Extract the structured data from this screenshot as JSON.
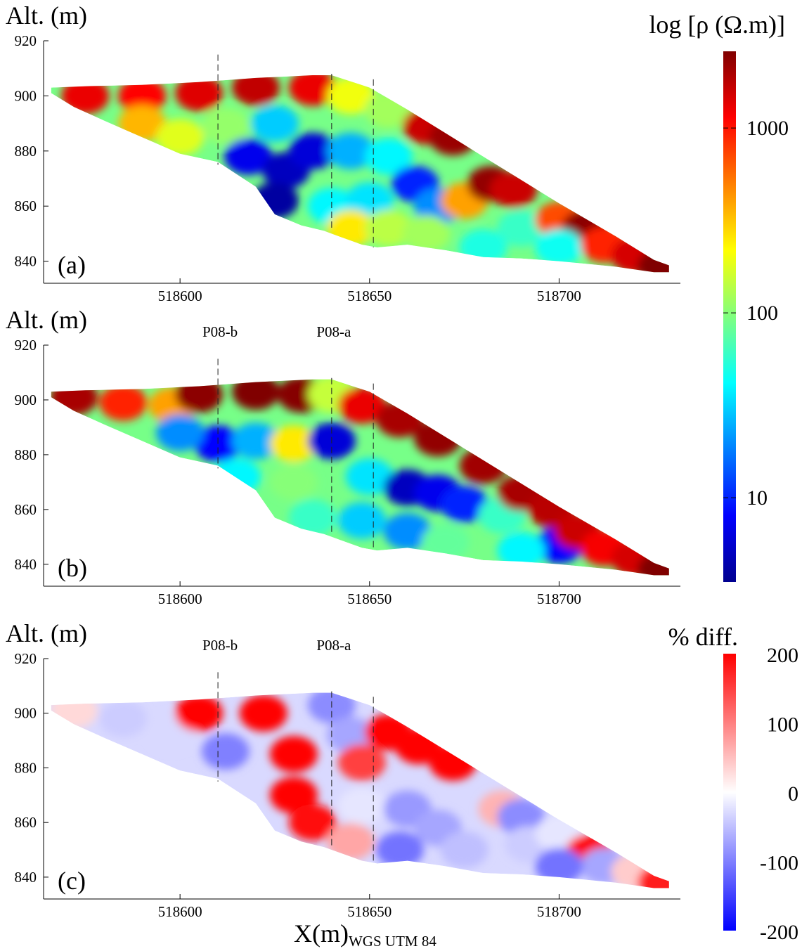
{
  "panels": [
    {
      "id": "a",
      "label": "(a)",
      "ylabel": "Alt. (m)",
      "profiles": []
    },
    {
      "id": "b",
      "label": "(b)",
      "ylabel": "Alt. (m)",
      "profiles": [
        {
          "name": "P08-b",
          "x": 518610
        },
        {
          "name": "P08-a",
          "x": 518640
        }
      ]
    },
    {
      "id": "c",
      "label": "(c)",
      "ylabel": "Alt. (m)",
      "profiles": [
        {
          "name": "P08-b",
          "x": 518610
        },
        {
          "name": "P08-a",
          "x": 518640
        }
      ]
    }
  ],
  "profile_lines_x": [
    518610,
    518640,
    518651
  ],
  "xlabel_main": "X(m)",
  "xlabel_sub": "WGS UTM 84",
  "colorbar_resistivity": {
    "title": "log [ρ (Ω.m)]",
    "ticks": [
      "10",
      "100",
      "1000"
    ],
    "colormap": "jet"
  },
  "colorbar_diff": {
    "title": "% diff.",
    "ticks": [
      "200",
      "100",
      "0",
      "-100",
      "-200"
    ],
    "colormap": "blue-white-red"
  },
  "chart_data": [
    {
      "type": "heatmap",
      "panel": "a",
      "title": "",
      "xlabel": "",
      "ylabel": "Alt. (m)",
      "xlim": [
        518564,
        518732
      ],
      "ylim": [
        832,
        920
      ],
      "xticks": [
        518600,
        518650,
        518700
      ],
      "yticks": [
        840,
        860,
        880,
        900,
        920
      ],
      "colorscale": "log",
      "clim": [
        3.5,
        2600
      ],
      "outline": [
        [
          518566,
          903
        ],
        [
          518575,
          903.5
        ],
        [
          518590,
          904
        ],
        [
          518605,
          905
        ],
        [
          518620,
          906.5
        ],
        [
          518635,
          907.5
        ],
        [
          518640,
          907.5
        ],
        [
          518650,
          903
        ],
        [
          518660,
          895
        ],
        [
          518680,
          878
        ],
        [
          518700,
          861
        ],
        [
          518715,
          849
        ],
        [
          518725,
          840.5
        ],
        [
          518729,
          838.5
        ],
        [
          518729,
          836
        ],
        [
          518725,
          836
        ],
        [
          518715,
          838
        ],
        [
          518700,
          840
        ],
        [
          518690,
          841
        ],
        [
          518680,
          841.5
        ],
        [
          518670,
          844
        ],
        [
          518660,
          846
        ],
        [
          518652,
          845
        ],
        [
          518648,
          846
        ],
        [
          518642,
          849
        ],
        [
          518638,
          851
        ],
        [
          518632,
          853
        ],
        [
          518625,
          857
        ],
        [
          518620,
          867
        ],
        [
          518610,
          876
        ],
        [
          518600,
          879
        ],
        [
          518590,
          885
        ],
        [
          518580,
          891
        ],
        [
          518572,
          896
        ],
        [
          518566,
          901
        ]
      ],
      "cells": [
        {
          "x": 518575,
          "y": 900,
          "rho": 1300
        },
        {
          "x": 518590,
          "y": 900,
          "rho": 1100
        },
        {
          "x": 518605,
          "y": 901,
          "rho": 1400
        },
        {
          "x": 518620,
          "y": 903,
          "rho": 1700
        },
        {
          "x": 518635,
          "y": 903,
          "rho": 1300
        },
        {
          "x": 518645,
          "y": 900,
          "rho": 200
        },
        {
          "x": 518655,
          "y": 895,
          "rho": 120
        },
        {
          "x": 518665,
          "y": 889,
          "rho": 1600
        },
        {
          "x": 518672,
          "y": 885,
          "rho": 2200
        },
        {
          "x": 518590,
          "y": 890,
          "rho": 350
        },
        {
          "x": 518600,
          "y": 885,
          "rho": 180
        },
        {
          "x": 518612,
          "y": 889,
          "rho": 110
        },
        {
          "x": 518625,
          "y": 890,
          "rho": 30
        },
        {
          "x": 518618,
          "y": 878,
          "rho": 7
        },
        {
          "x": 518628,
          "y": 873,
          "rho": 5
        },
        {
          "x": 518635,
          "y": 880,
          "rho": 6
        },
        {
          "x": 518625,
          "y": 862,
          "rho": 4
        },
        {
          "x": 518645,
          "y": 880,
          "rho": 25
        },
        {
          "x": 518655,
          "y": 878,
          "rho": 40
        },
        {
          "x": 518662,
          "y": 868,
          "rho": 10
        },
        {
          "x": 518668,
          "y": 860,
          "rho": 20
        },
        {
          "x": 518640,
          "y": 860,
          "rho": 40
        },
        {
          "x": 518650,
          "y": 862,
          "rho": 35
        },
        {
          "x": 518645,
          "y": 852,
          "rho": 250
        },
        {
          "x": 518655,
          "y": 852,
          "rho": 140
        },
        {
          "x": 518665,
          "y": 850,
          "rho": 120
        },
        {
          "x": 518675,
          "y": 862,
          "rho": 400
        },
        {
          "x": 518682,
          "y": 868,
          "rho": 2300
        },
        {
          "x": 518688,
          "y": 866,
          "rho": 1600
        },
        {
          "x": 518690,
          "y": 852,
          "rho": 60
        },
        {
          "x": 518700,
          "y": 855,
          "rho": 700
        },
        {
          "x": 518707,
          "y": 852,
          "rho": 2400
        },
        {
          "x": 518700,
          "y": 845,
          "rho": 45
        },
        {
          "x": 518712,
          "y": 846,
          "rho": 900
        },
        {
          "x": 518720,
          "y": 842,
          "rho": 1500
        },
        {
          "x": 518727,
          "y": 838,
          "rho": 2600
        },
        {
          "x": 518680,
          "y": 845,
          "rho": 50
        }
      ]
    },
    {
      "type": "heatmap",
      "panel": "b",
      "title": "",
      "xlabel": "",
      "ylabel": "Alt. (m)",
      "xlim": [
        518564,
        518732
      ],
      "ylim": [
        832,
        920
      ],
      "xticks": [
        518600,
        518650,
        518700
      ],
      "yticks": [
        840,
        860,
        880,
        900,
        920
      ],
      "colorscale": "log",
      "clim": [
        3.5,
        2600
      ],
      "outline": [
        [
          518566,
          903
        ],
        [
          518575,
          903.5
        ],
        [
          518590,
          904
        ],
        [
          518605,
          905
        ],
        [
          518620,
          906.5
        ],
        [
          518635,
          907.5
        ],
        [
          518640,
          907.5
        ],
        [
          518650,
          903
        ],
        [
          518660,
          895
        ],
        [
          518680,
          878
        ],
        [
          518700,
          861
        ],
        [
          518715,
          849
        ],
        [
          518725,
          840.5
        ],
        [
          518729,
          838.5
        ],
        [
          518729,
          836
        ],
        [
          518725,
          836
        ],
        [
          518715,
          838
        ],
        [
          518700,
          840
        ],
        [
          518690,
          841
        ],
        [
          518680,
          841.5
        ],
        [
          518670,
          844
        ],
        [
          518660,
          846
        ],
        [
          518652,
          845
        ],
        [
          518648,
          846
        ],
        [
          518642,
          849
        ],
        [
          518638,
          851
        ],
        [
          518632,
          853
        ],
        [
          518625,
          857
        ],
        [
          518620,
          867
        ],
        [
          518610,
          876
        ],
        [
          518600,
          879
        ],
        [
          518590,
          885
        ],
        [
          518580,
          891
        ],
        [
          518572,
          896
        ],
        [
          518566,
          901
        ]
      ],
      "cells": [
        {
          "x": 518572,
          "y": 901,
          "rho": 2000
        },
        {
          "x": 518585,
          "y": 899,
          "rho": 900
        },
        {
          "x": 518598,
          "y": 898,
          "rho": 400
        },
        {
          "x": 518605,
          "y": 902,
          "rho": 2400
        },
        {
          "x": 518620,
          "y": 903,
          "rho": 2600
        },
        {
          "x": 518632,
          "y": 902,
          "rho": 2500
        },
        {
          "x": 518640,
          "y": 902,
          "rho": 150
        },
        {
          "x": 518648,
          "y": 898,
          "rho": 1300
        },
        {
          "x": 518658,
          "y": 893,
          "rho": 2000
        },
        {
          "x": 518668,
          "y": 886,
          "rho": 2300
        },
        {
          "x": 518680,
          "y": 876,
          "rho": 2100
        },
        {
          "x": 518610,
          "y": 884,
          "rho": 8
        },
        {
          "x": 518620,
          "y": 885,
          "rho": 25
        },
        {
          "x": 518630,
          "y": 884,
          "rho": 250
        },
        {
          "x": 518640,
          "y": 885,
          "rho": 6
        },
        {
          "x": 518600,
          "y": 888,
          "rho": 20
        },
        {
          "x": 518615,
          "y": 872,
          "rho": 40
        },
        {
          "x": 518630,
          "y": 870,
          "rho": 100
        },
        {
          "x": 518650,
          "y": 872,
          "rho": 35
        },
        {
          "x": 518660,
          "y": 868,
          "rho": 5
        },
        {
          "x": 518668,
          "y": 866,
          "rho": 7
        },
        {
          "x": 518675,
          "y": 862,
          "rho": 10
        },
        {
          "x": 518635,
          "y": 857,
          "rho": 60
        },
        {
          "x": 518648,
          "y": 856,
          "rho": 30
        },
        {
          "x": 518660,
          "y": 852,
          "rho": 20
        },
        {
          "x": 518670,
          "y": 848,
          "rho": 80
        },
        {
          "x": 518685,
          "y": 858,
          "rho": 60
        },
        {
          "x": 518690,
          "y": 866,
          "rho": 2000
        },
        {
          "x": 518698,
          "y": 860,
          "rho": 1800
        },
        {
          "x": 518700,
          "y": 847,
          "rho": 8
        },
        {
          "x": 518705,
          "y": 852,
          "rho": 1600
        },
        {
          "x": 518712,
          "y": 846,
          "rho": 1200
        },
        {
          "x": 518720,
          "y": 842,
          "rho": 1500
        },
        {
          "x": 518727,
          "y": 838,
          "rho": 2600
        },
        {
          "x": 518690,
          "y": 845,
          "rho": 40
        }
      ]
    },
    {
      "type": "heatmap",
      "panel": "c",
      "title": "",
      "xlabel": "X(m) WGS UTM 84",
      "ylabel": "Alt. (m)",
      "xlim": [
        518564,
        518732
      ],
      "ylim": [
        832,
        920
      ],
      "xticks": [
        518600,
        518650,
        518700
      ],
      "yticks": [
        840,
        860,
        880,
        900,
        920
      ],
      "colorscale": "linear",
      "clim": [
        -200,
        200
      ],
      "outline": [
        [
          518566,
          903
        ],
        [
          518575,
          903.5
        ],
        [
          518590,
          904
        ],
        [
          518605,
          905
        ],
        [
          518620,
          906.5
        ],
        [
          518635,
          907.5
        ],
        [
          518640,
          907.5
        ],
        [
          518650,
          903
        ],
        [
          518660,
          895
        ],
        [
          518680,
          878
        ],
        [
          518700,
          861
        ],
        [
          518715,
          849
        ],
        [
          518725,
          840.5
        ],
        [
          518729,
          838.5
        ],
        [
          518729,
          836
        ],
        [
          518725,
          836
        ],
        [
          518715,
          838
        ],
        [
          518700,
          840
        ],
        [
          518690,
          841
        ],
        [
          518680,
          841.5
        ],
        [
          518670,
          844
        ],
        [
          518660,
          846
        ],
        [
          518652,
          845
        ],
        [
          518648,
          846
        ],
        [
          518642,
          849
        ],
        [
          518638,
          851
        ],
        [
          518632,
          853
        ],
        [
          518625,
          857
        ],
        [
          518620,
          867
        ],
        [
          518610,
          876
        ],
        [
          518600,
          879
        ],
        [
          518590,
          885
        ],
        [
          518580,
          891
        ],
        [
          518572,
          896
        ],
        [
          518566,
          901
        ]
      ],
      "cells": [
        {
          "x": 518572,
          "y": 901,
          "rho": 30
        },
        {
          "x": 518585,
          "y": 898,
          "rho": -40
        },
        {
          "x": 518598,
          "y": 893,
          "rho": -30
        },
        {
          "x": 518605,
          "y": 900,
          "rho": 200
        },
        {
          "x": 518612,
          "y": 886,
          "rho": -100
        },
        {
          "x": 518622,
          "y": 900,
          "rho": 200
        },
        {
          "x": 518630,
          "y": 885,
          "rho": 200
        },
        {
          "x": 518630,
          "y": 870,
          "rho": 200
        },
        {
          "x": 518635,
          "y": 860,
          "rho": 190
        },
        {
          "x": 518640,
          "y": 903,
          "rho": -90
        },
        {
          "x": 518645,
          "y": 892,
          "rho": -70
        },
        {
          "x": 518648,
          "y": 882,
          "rho": 150
        },
        {
          "x": 518655,
          "y": 893,
          "rho": 200
        },
        {
          "x": 518663,
          "y": 888,
          "rho": 200
        },
        {
          "x": 518672,
          "y": 882,
          "rho": 200
        },
        {
          "x": 518648,
          "y": 866,
          "rho": -20
        },
        {
          "x": 518660,
          "y": 865,
          "rho": -80
        },
        {
          "x": 518668,
          "y": 858,
          "rho": -70
        },
        {
          "x": 518645,
          "y": 853,
          "rho": 70
        },
        {
          "x": 518658,
          "y": 850,
          "rho": -110
        },
        {
          "x": 518675,
          "y": 850,
          "rho": -50
        },
        {
          "x": 518685,
          "y": 865,
          "rho": 60
        },
        {
          "x": 518690,
          "y": 862,
          "rho": -90
        },
        {
          "x": 518692,
          "y": 852,
          "rho": -40
        },
        {
          "x": 518700,
          "y": 856,
          "rho": -20
        },
        {
          "x": 518708,
          "y": 849,
          "rho": 200
        },
        {
          "x": 518712,
          "y": 844,
          "rho": -70
        },
        {
          "x": 518720,
          "y": 842,
          "rho": 40
        },
        {
          "x": 518727,
          "y": 838,
          "rho": 180
        },
        {
          "x": 518700,
          "y": 844,
          "rho": -110
        }
      ]
    }
  ]
}
